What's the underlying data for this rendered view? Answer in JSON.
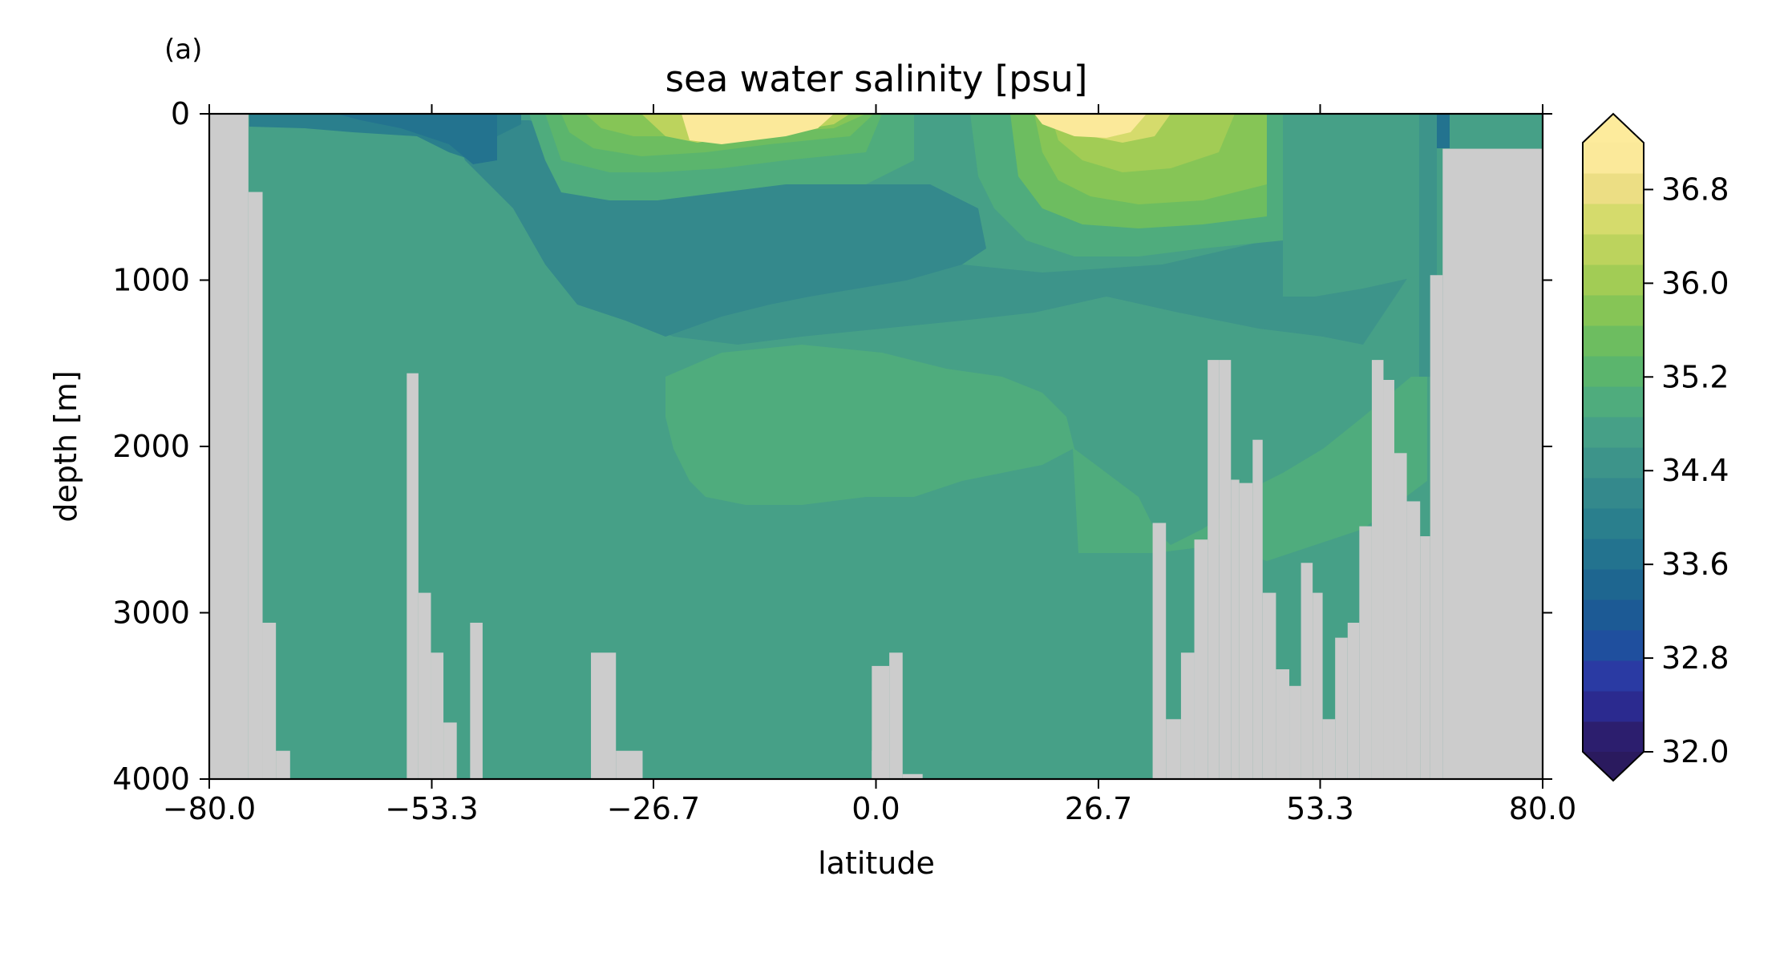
{
  "panel_label": "(a)",
  "chart_data": {
    "type": "heatmap",
    "title": "sea water salinity [psu]",
    "xlabel": "latitude",
    "ylabel": "depth [m]",
    "xlim": [
      -80.0,
      80.0
    ],
    "ylim": [
      4000,
      0
    ],
    "y_inverted": true,
    "x_ticks": [
      "−80.0",
      "−53.3",
      "−26.7",
      "0.0",
      "26.7",
      "53.3",
      "80.0"
    ],
    "x_tick_values": [
      -80.0,
      -53.3,
      -26.7,
      0.0,
      26.7,
      53.3,
      80.0
    ],
    "y_ticks": [
      "0",
      "1000",
      "2000",
      "3000",
      "4000"
    ],
    "y_tick_values": [
      0,
      1000,
      2000,
      3000,
      4000
    ],
    "grid": false,
    "missing_color": "#cccccc",
    "colorbar": {
      "ticks": [
        "32.0",
        "32.8",
        "33.6",
        "34.4",
        "35.2",
        "36.0",
        "36.8"
      ],
      "tick_values": [
        32.0,
        32.8,
        33.6,
        34.4,
        35.2,
        36.0,
        36.8
      ],
      "range": [
        32.0,
        37.2
      ],
      "extend": "both",
      "under_color": "#2a1a5e",
      "over_color": "#fdeb9c",
      "level_colors": [
        "#2c1e6e",
        "#2b2a8f",
        "#2a3aa3",
        "#1f4f9e",
        "#1c5a95",
        "#1e6690",
        "#23738f",
        "#2a7f8d",
        "#34898c",
        "#3d948a",
        "#46a087",
        "#4fac7d",
        "#5bb56d",
        "#6dbd60",
        "#86c556",
        "#a2cc55",
        "#bcd35d",
        "#d5db6c",
        "#ecde84",
        "#fbe99a"
      ]
    },
    "land": [
      [
        -80.0,
        -75.3,
        0,
        4000
      ],
      [
        -75.3,
        -73.6,
        470,
        4000
      ],
      [
        -73.6,
        -72.0,
        3060,
        4000
      ],
      [
        -72.0,
        -70.3,
        3830,
        4000
      ],
      [
        -56.3,
        -54.9,
        1560,
        4000
      ],
      [
        -54.9,
        -53.4,
        2880,
        4000
      ],
      [
        -53.4,
        -51.9,
        3240,
        4000
      ],
      [
        -51.9,
        -50.3,
        3660,
        4000
      ],
      [
        -48.7,
        -47.2,
        3060,
        4000
      ],
      [
        -34.2,
        -31.2,
        3240,
        4000
      ],
      [
        -31.2,
        -28.0,
        3830,
        4000
      ],
      [
        0.8,
        -0.5,
        3830,
        4000
      ],
      [
        -0.5,
        1.6,
        3320,
        4000
      ],
      [
        1.6,
        3.2,
        3240,
        4000
      ],
      [
        3.2,
        5.6,
        3970,
        4000
      ],
      [
        33.2,
        34.8,
        2460,
        4000
      ],
      [
        34.8,
        36.6,
        3640,
        4000
      ],
      [
        36.6,
        38.2,
        3240,
        4000
      ],
      [
        38.2,
        39.8,
        2560,
        4000
      ],
      [
        39.8,
        41.2,
        1480,
        4000
      ],
      [
        41.2,
        42.6,
        1480,
        4000
      ],
      [
        42.6,
        43.6,
        2200,
        4000
      ],
      [
        43.6,
        45.2,
        2220,
        4000
      ],
      [
        45.2,
        46.4,
        1960,
        4000
      ],
      [
        46.4,
        48.0,
        2880,
        4000
      ],
      [
        48.0,
        49.6,
        3340,
        4000
      ],
      [
        49.6,
        51.0,
        3440,
        4000
      ],
      [
        51.0,
        52.4,
        2700,
        4000
      ],
      [
        52.4,
        53.6,
        2880,
        4000
      ],
      [
        53.6,
        55.1,
        3640,
        4000
      ],
      [
        55.1,
        56.6,
        3150,
        4000
      ],
      [
        56.6,
        58.0,
        3060,
        4000
      ],
      [
        58.0,
        59.5,
        2480,
        4000
      ],
      [
        59.5,
        60.9,
        1480,
        4000
      ],
      [
        60.9,
        62.2,
        1600,
        4000
      ],
      [
        62.2,
        63.7,
        2040,
        4000
      ],
      [
        63.7,
        65.3,
        2330,
        4000
      ],
      [
        65.3,
        66.5,
        2540,
        4000
      ],
      [
        66.5,
        68.0,
        970,
        4000
      ],
      [
        68.0,
        80.0,
        210,
        4000
      ]
    ]
  }
}
